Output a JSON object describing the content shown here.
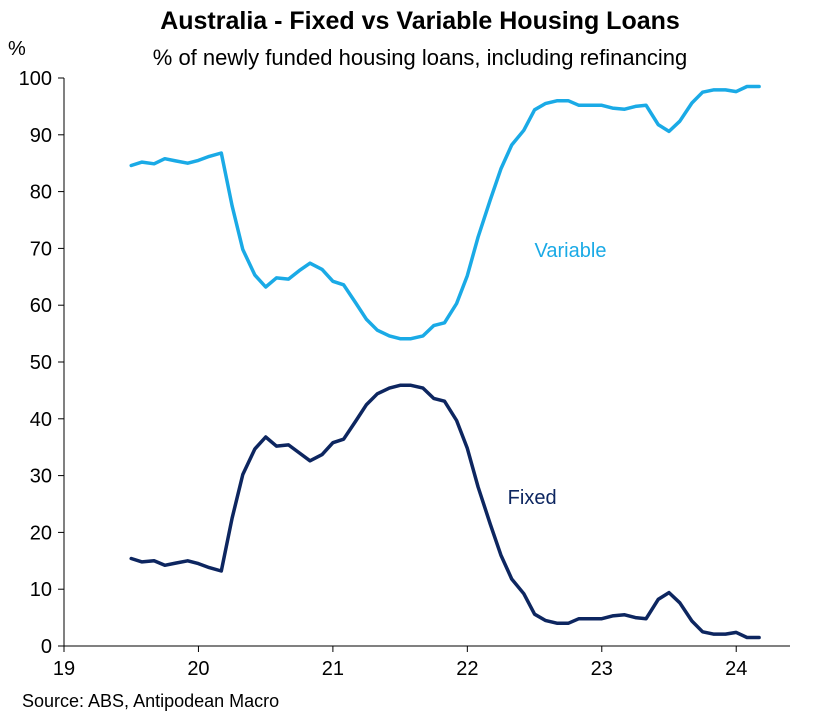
{
  "chart_data": {
    "type": "line",
    "title": "Australia - Fixed vs Variable Housing Loans",
    "subtitle": "% of newly funded housing loans, including refinancing",
    "ylabel": "%",
    "xlabel": "",
    "source": "Source: ABS, Antipodean Macro",
    "xlim": [
      19,
      24.4
    ],
    "ylim": [
      0,
      100
    ],
    "x_ticks": [
      "19",
      "20",
      "21",
      "22",
      "23",
      "24"
    ],
    "y_ticks": [
      "0",
      "10",
      "20",
      "30",
      "40",
      "50",
      "60",
      "70",
      "80",
      "90",
      "100"
    ],
    "grid": false,
    "legend": "inline labels",
    "x": [
      19.5,
      19.58,
      19.67,
      19.75,
      19.83,
      19.92,
      20.0,
      20.08,
      20.17,
      20.25,
      20.33,
      20.42,
      20.5,
      20.58,
      20.67,
      20.75,
      20.83,
      20.92,
      21.0,
      21.08,
      21.17,
      21.25,
      21.33,
      21.42,
      21.5,
      21.58,
      21.67,
      21.75,
      21.83,
      21.92,
      22.0,
      22.08,
      22.17,
      22.25,
      22.33,
      22.42,
      22.5,
      22.58,
      22.67,
      22.75,
      22.83,
      22.92,
      23.0,
      23.08,
      23.17,
      23.25,
      23.33,
      23.42,
      23.5,
      23.58,
      23.67,
      23.75,
      23.83,
      23.92,
      24.0,
      24.08,
      24.17
    ],
    "series": [
      {
        "name": "Variable",
        "color": "#1aaae6",
        "values": [
          84.6,
          85.2,
          84.9,
          85.8,
          85.4,
          85.0,
          85.5,
          86.2,
          86.8,
          77.5,
          69.8,
          65.3,
          63.2,
          64.8,
          64.6,
          66.1,
          67.4,
          66.3,
          64.2,
          63.6,
          60.4,
          57.5,
          55.6,
          54.6,
          54.1,
          54.1,
          54.6,
          56.4,
          56.9,
          60.3,
          65.2,
          72.0,
          78.5,
          84.0,
          88.2,
          90.8,
          94.4,
          95.5,
          96.0,
          96.0,
          95.2,
          95.2,
          95.2,
          94.7,
          94.5,
          95.0,
          95.2,
          91.8,
          90.6,
          92.4,
          95.6,
          97.5,
          97.9,
          97.9,
          97.6,
          98.5,
          98.5
        ],
        "label_pos": [
          22.5,
          68.5
        ]
      },
      {
        "name": "Fixed",
        "color": "#0d2660",
        "values": [
          15.4,
          14.8,
          15.0,
          14.2,
          14.6,
          15.0,
          14.5,
          13.8,
          13.2,
          22.5,
          30.2,
          34.7,
          36.8,
          35.2,
          35.4,
          34.0,
          32.6,
          33.7,
          35.8,
          36.4,
          39.6,
          42.5,
          44.4,
          45.4,
          45.9,
          45.9,
          45.4,
          43.6,
          43.1,
          39.7,
          34.8,
          28.0,
          21.5,
          16.0,
          11.8,
          9.2,
          5.6,
          4.5,
          4.0,
          4.0,
          4.8,
          4.8,
          4.8,
          5.3,
          5.5,
          5.0,
          4.8,
          8.2,
          9.4,
          7.6,
          4.4,
          2.5,
          2.1,
          2.1,
          2.4,
          1.5,
          1.5
        ],
        "label_pos": [
          22.3,
          25.0
        ]
      }
    ]
  }
}
